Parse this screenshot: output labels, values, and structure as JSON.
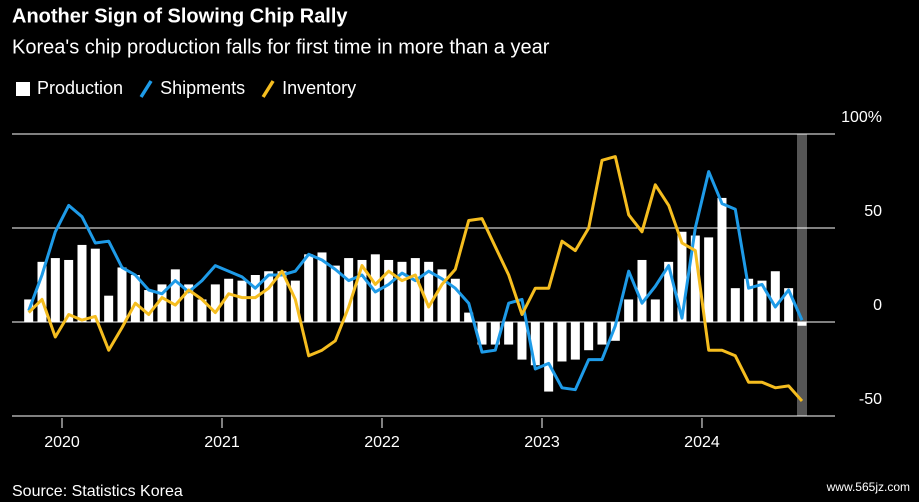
{
  "chart_data": {
    "type": "bar_line",
    "title": "Another Sign of Slowing Chip Rally",
    "subtitle": "Korea's chip production falls for first time in more than a year",
    "source": "Source: Statistics Korea",
    "watermark": "www.565jz.com",
    "categories": [
      null,
      null,
      null,
      "2020",
      null,
      null,
      null,
      null,
      null,
      null,
      null,
      null,
      null,
      null,
      null,
      "2021",
      null,
      null,
      null,
      null,
      null,
      null,
      null,
      null,
      null,
      null,
      null,
      "2022",
      null,
      null,
      null,
      null,
      null,
      null,
      null,
      null,
      null,
      null,
      null,
      "2023",
      null,
      null,
      null,
      null,
      null,
      null,
      null,
      null,
      null,
      null,
      null,
      "2024",
      null,
      null,
      null,
      null,
      null,
      null,
      null
    ],
    "series": [
      {
        "name": "Production",
        "type": "bar",
        "color": "#ffffff",
        "values": [
          12,
          32,
          34,
          33,
          41,
          39,
          14,
          29,
          25,
          17,
          20,
          28,
          20,
          12,
          20,
          23,
          22,
          25,
          27,
          27,
          22,
          36,
          37,
          30,
          34,
          33,
          36,
          33,
          32,
          34,
          32,
          28,
          23,
          5,
          -12,
          -12,
          -12,
          -20,
          -23,
          -37,
          -21,
          -20,
          -15,
          -12,
          -10,
          12,
          33,
          12,
          32,
          48,
          46,
          45,
          66,
          18,
          23,
          22,
          27,
          18,
          -2
        ]
      },
      {
        "name": "Shipments",
        "type": "line",
        "color": "#1e9be8",
        "values": [
          6,
          25,
          48,
          62,
          56,
          42,
          43,
          29,
          25,
          17,
          15,
          22,
          16,
          22,
          30,
          27,
          24,
          18,
          25,
          25,
          27,
          36,
          33,
          28,
          22,
          25,
          16,
          20,
          26,
          22,
          27,
          23,
          18,
          10,
          -16,
          -15,
          10,
          12,
          -25,
          -22,
          -35,
          -36,
          -20,
          -20,
          -2,
          27,
          10,
          19,
          30,
          2,
          50,
          80,
          63,
          60,
          18,
          20,
          8,
          17,
          1
        ]
      },
      {
        "name": "Inventory",
        "type": "line",
        "color": "#f5bd1f",
        "values": [
          5,
          12,
          -8,
          4,
          1,
          3,
          -15,
          -3,
          10,
          4,
          13,
          9,
          17,
          12,
          5,
          15,
          13,
          13,
          18,
          27,
          12,
          -18,
          -15,
          -10,
          8,
          30,
          20,
          27,
          22,
          25,
          8,
          20,
          28,
          54,
          55,
          40,
          25,
          4,
          18,
          18,
          43,
          38,
          50,
          86,
          88,
          57,
          48,
          73,
          62,
          42,
          38,
          -15,
          -15,
          -18,
          -32,
          -32,
          -35,
          -34,
          -42
        ]
      }
    ],
    "ylim": [
      -50,
      100
    ],
    "yticks": [
      -50,
      0,
      50,
      {
        "value": 100,
        "label": "100%"
      }
    ],
    "grid": true
  }
}
